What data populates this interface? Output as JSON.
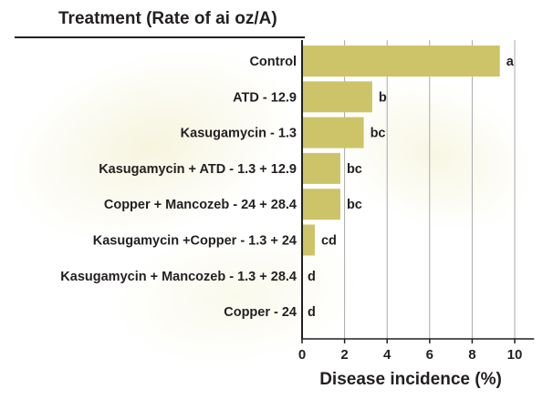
{
  "colors": {
    "bar": "#cdc46a",
    "text": "#231f20",
    "grid": "#a7a9ac",
    "axis": "#231f20"
  },
  "header": {
    "title": "Treatment (Rate of ai oz/A)"
  },
  "chart_data": {
    "type": "bar",
    "orientation": "horizontal",
    "title": "",
    "ylabel": "Treatment (Rate of ai oz/A)",
    "xlabel": "Disease incidence (%)",
    "xlim": [
      0,
      11
    ],
    "ticks": [
      0,
      2,
      4,
      6,
      8,
      10
    ],
    "grid": true,
    "categories": [
      "Control",
      "ATD - 12.9",
      "Kasugamycin - 1.3",
      "Kasugamycin + ATD - 1.3 + 12.9",
      "Copper + Mancozeb  -  24 +  28.4",
      "Kasugamycin +Copper -  1.3 + 24",
      "Kasugamycin + Mancozeb - 1.3 + 28.4",
      "Copper - 24"
    ],
    "values": [
      9.3,
      3.3,
      2.9,
      1.8,
      1.8,
      0.6,
      0,
      0
    ],
    "letters": [
      "a",
      "b",
      "bc",
      "bc",
      "bc",
      "cd",
      "d",
      "d"
    ]
  }
}
